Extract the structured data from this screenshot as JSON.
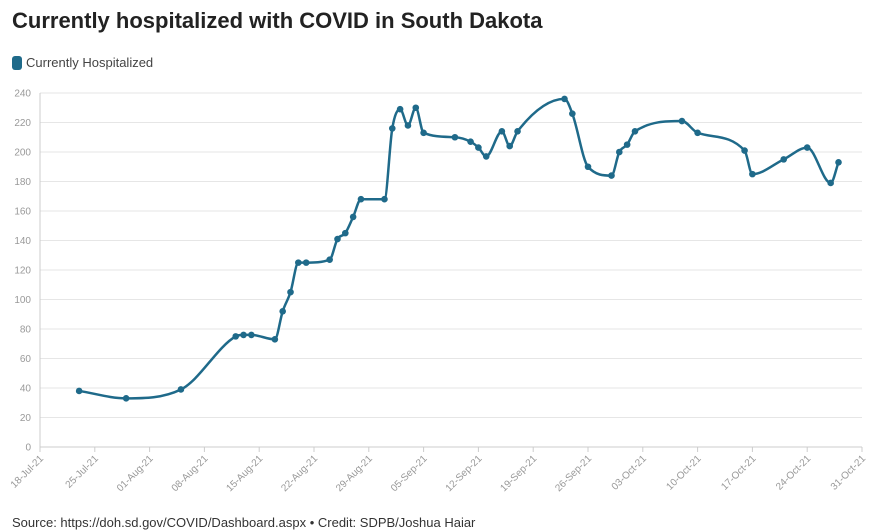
{
  "title": "Currently hospitalized with COVID in South Dakota",
  "source": "Source: https://doh.sd.gov/COVID/Dashboard.aspx • Credit: SDPB/Joshua Haiar",
  "colors": {
    "series": "#1f6a8a",
    "grid": "#e6e6e6",
    "axis": "#cccccc"
  },
  "chart_data": {
    "type": "line",
    "title": "Currently hospitalized with COVID in South Dakota",
    "xlabel": "",
    "ylabel": "",
    "ylim": [
      0,
      240
    ],
    "yticks": [
      0,
      20,
      40,
      60,
      80,
      100,
      120,
      140,
      160,
      180,
      200,
      220,
      240
    ],
    "xlim": [
      "2021-07-18",
      "2021-10-31"
    ],
    "xticks": [
      "18-Jul-21",
      "25-Jul-21",
      "01-Aug-21",
      "08-Aug-21",
      "15-Aug-21",
      "22-Aug-21",
      "29-Aug-21",
      "05-Sep-21",
      "12-Sep-21",
      "19-Sep-21",
      "26-Sep-21",
      "03-Oct-21",
      "10-Oct-21",
      "17-Oct-21",
      "24-Oct-21",
      "31-Oct-21"
    ],
    "grid": true,
    "legend": "top-left",
    "series": [
      {
        "name": "Currently Hospitalized",
        "points": [
          {
            "x": "2021-07-23",
            "y": 38
          },
          {
            "x": "2021-07-29",
            "y": 33
          },
          {
            "x": "2021-08-05",
            "y": 39
          },
          {
            "x": "2021-08-12",
            "y": 75
          },
          {
            "x": "2021-08-13",
            "y": 76
          },
          {
            "x": "2021-08-14",
            "y": 76
          },
          {
            "x": "2021-08-17",
            "y": 73
          },
          {
            "x": "2021-08-18",
            "y": 92
          },
          {
            "x": "2021-08-19",
            "y": 105
          },
          {
            "x": "2021-08-20",
            "y": 125
          },
          {
            "x": "2021-08-21",
            "y": 125
          },
          {
            "x": "2021-08-24",
            "y": 127
          },
          {
            "x": "2021-08-25",
            "y": 141
          },
          {
            "x": "2021-08-26",
            "y": 145
          },
          {
            "x": "2021-08-27",
            "y": 156
          },
          {
            "x": "2021-08-28",
            "y": 168
          },
          {
            "x": "2021-08-31",
            "y": 168
          },
          {
            "x": "2021-09-01",
            "y": 216
          },
          {
            "x": "2021-09-02",
            "y": 229
          },
          {
            "x": "2021-09-03",
            "y": 218
          },
          {
            "x": "2021-09-04",
            "y": 230
          },
          {
            "x": "2021-09-05",
            "y": 213
          },
          {
            "x": "2021-09-09",
            "y": 210
          },
          {
            "x": "2021-09-11",
            "y": 207
          },
          {
            "x": "2021-09-12",
            "y": 203
          },
          {
            "x": "2021-09-13",
            "y": 197
          },
          {
            "x": "2021-09-15",
            "y": 214
          },
          {
            "x": "2021-09-16",
            "y": 204
          },
          {
            "x": "2021-09-17",
            "y": 214
          },
          {
            "x": "2021-09-23",
            "y": 236
          },
          {
            "x": "2021-09-24",
            "y": 226
          },
          {
            "x": "2021-09-26",
            "y": 190
          },
          {
            "x": "2021-09-29",
            "y": 184
          },
          {
            "x": "2021-09-30",
            "y": 200
          },
          {
            "x": "2021-10-01",
            "y": 205
          },
          {
            "x": "2021-10-02",
            "y": 214
          },
          {
            "x": "2021-10-08",
            "y": 221
          },
          {
            "x": "2021-10-10",
            "y": 213
          },
          {
            "x": "2021-10-16",
            "y": 201
          },
          {
            "x": "2021-10-17",
            "y": 185
          },
          {
            "x": "2021-10-21",
            "y": 195
          },
          {
            "x": "2021-10-24",
            "y": 203
          },
          {
            "x": "2021-10-27",
            "y": 179
          },
          {
            "x": "2021-10-28",
            "y": 193
          }
        ]
      }
    ]
  }
}
